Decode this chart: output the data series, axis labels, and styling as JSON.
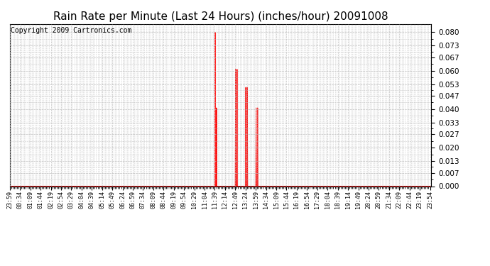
{
  "title": "Rain Rate per Minute (Last 24 Hours) (inches/hour) 20091008",
  "copyright": "Copyright 2009 Cartronics.com",
  "line_color": "#ff0000",
  "bg_color": "#ffffff",
  "grid_color": "#bbbbbb",
  "yticks": [
    0.0,
    0.007,
    0.013,
    0.02,
    0.027,
    0.033,
    0.04,
    0.047,
    0.053,
    0.06,
    0.067,
    0.073,
    0.08
  ],
  "ylim": [
    0.0,
    0.0843
  ],
  "title_fontsize": 11,
  "copyright_fontsize": 7,
  "spike_map": {
    "11:40": 0.08,
    "11:45": 0.0407,
    "12:50": 0.0607,
    "12:55": 0.0607,
    "13:25": 0.0513,
    "13:30": 0.0513,
    "14:00": 0.0407,
    "14:05": 0.0407
  },
  "tick_step": 35,
  "num_points": 1440
}
